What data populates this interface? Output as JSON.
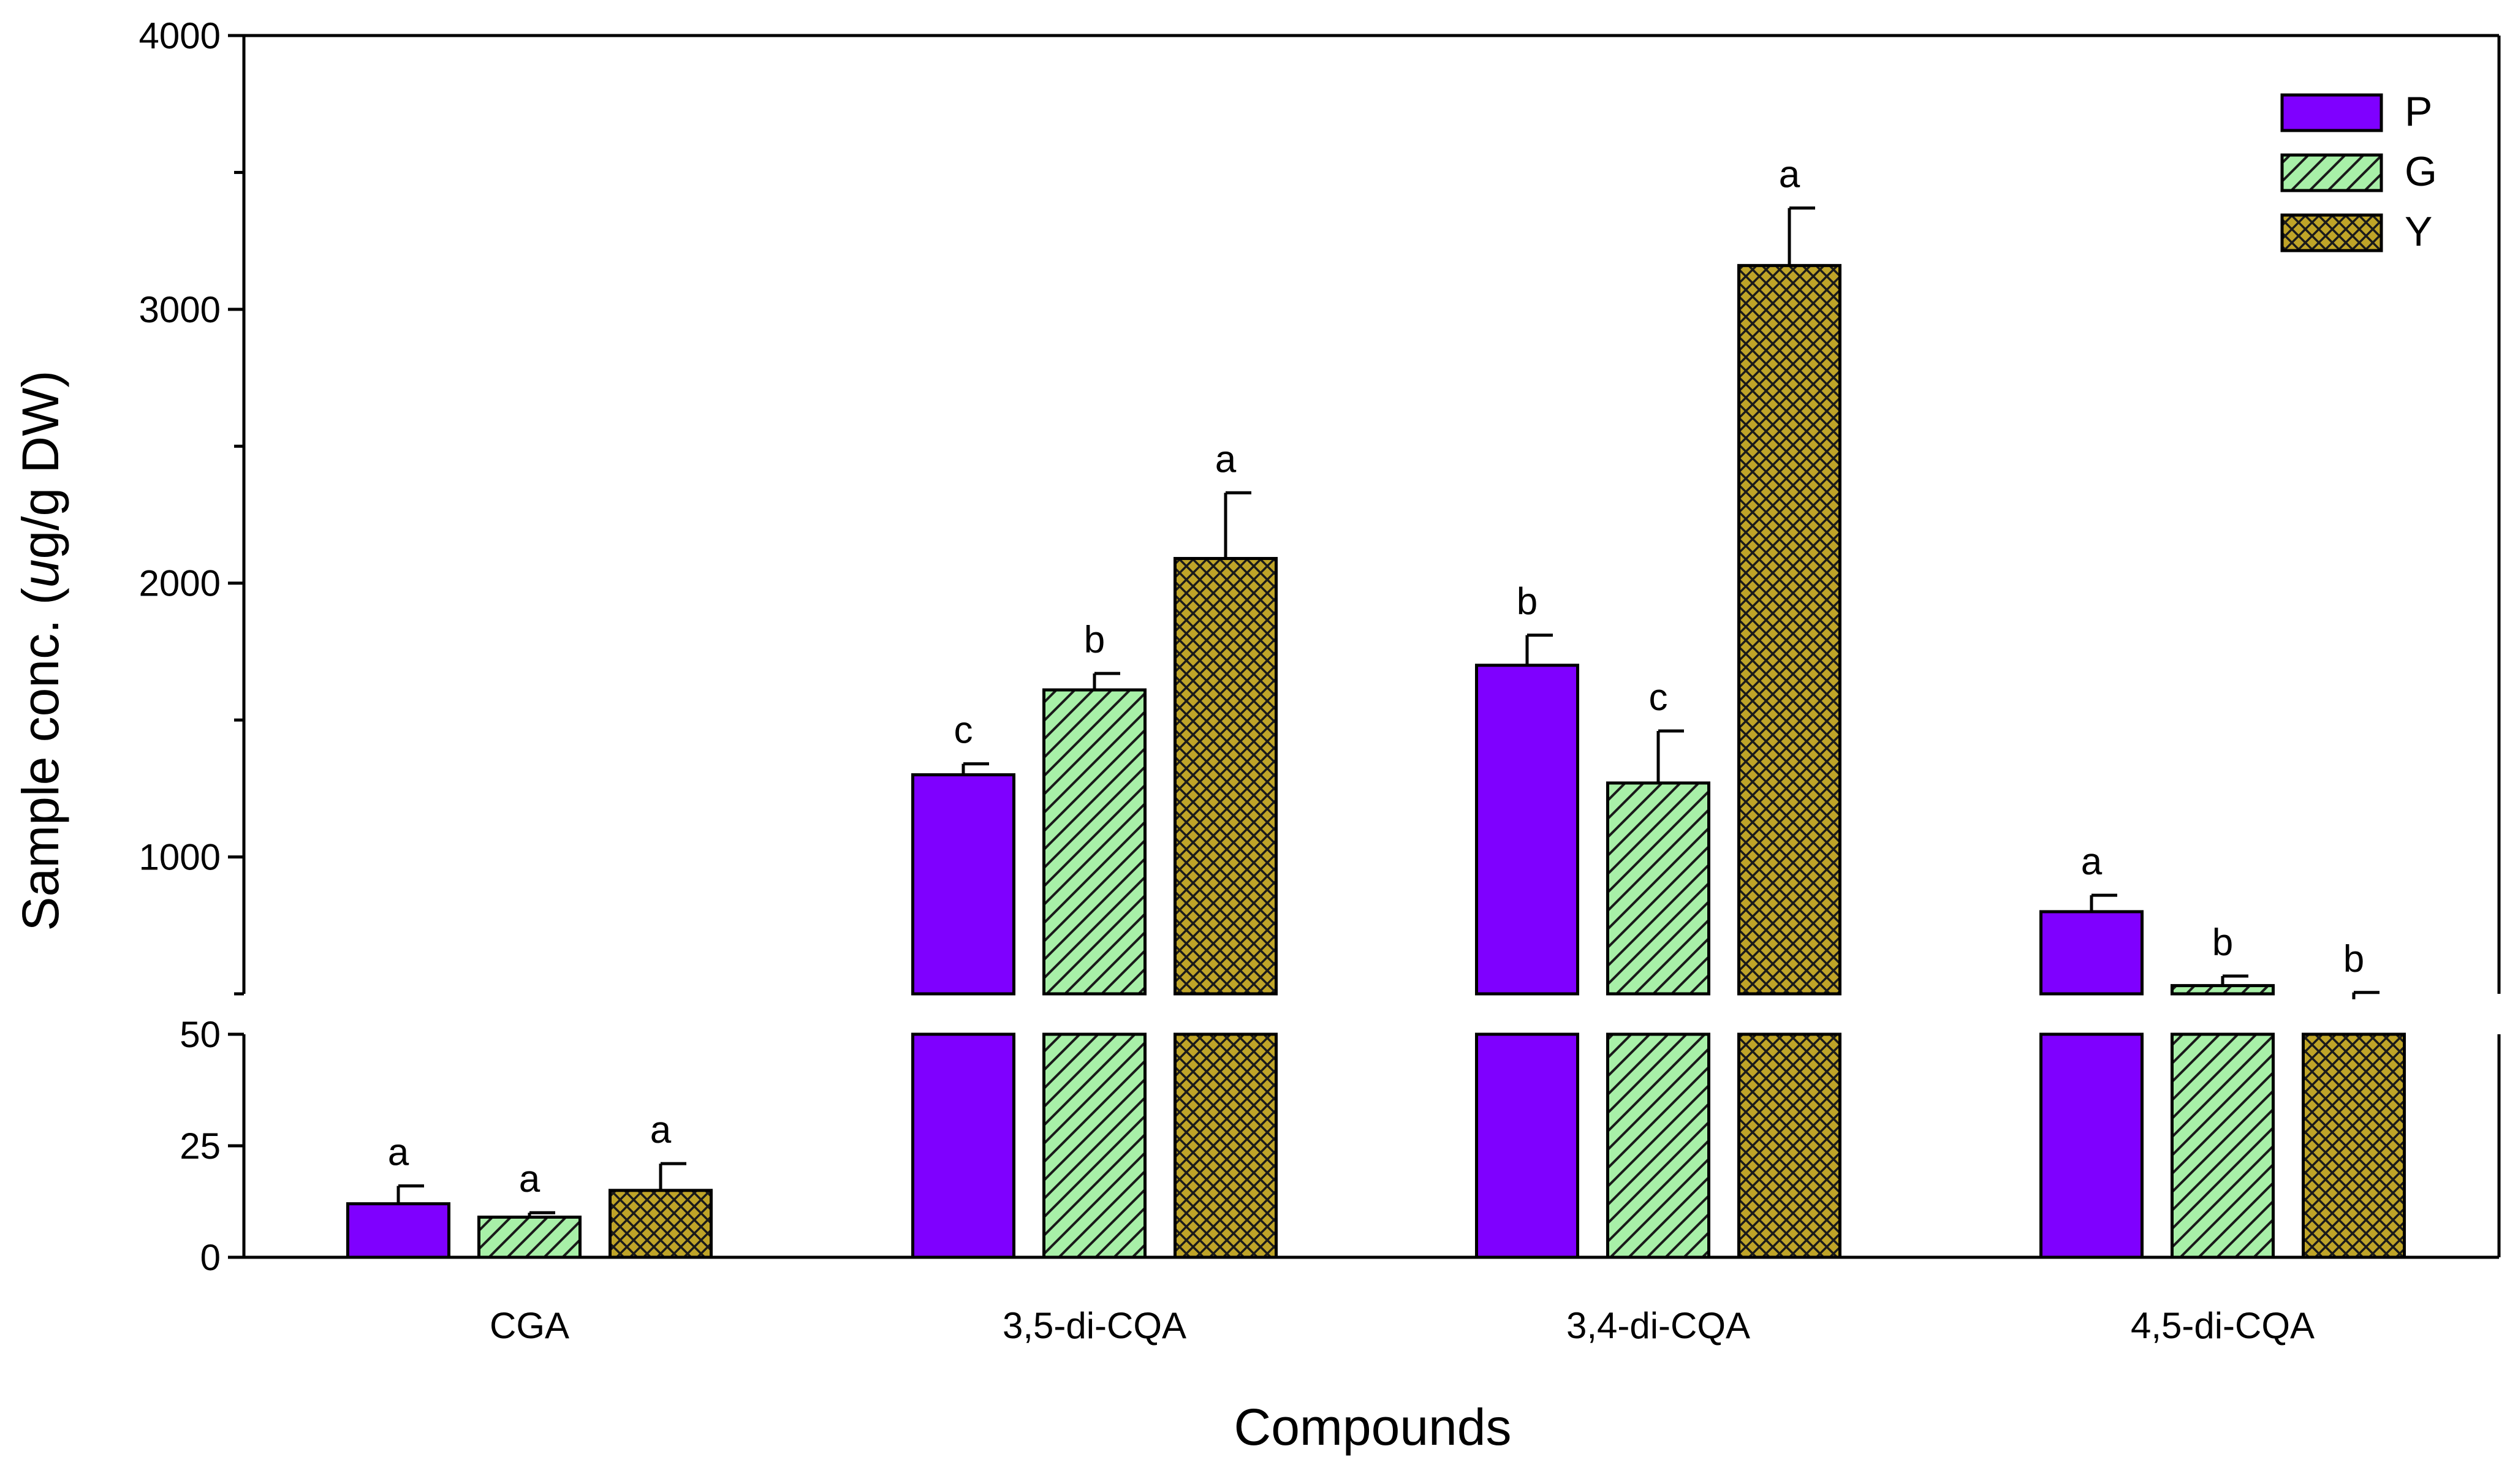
{
  "chart_data": {
    "type": "bar",
    "xlabel": "Compounds",
    "ylabel_prefix": "Sample conc. (",
    "ylabel_unit_italic": "u",
    "ylabel_suffix": "g/g DW)",
    "categories": [
      "CGA",
      "3,5-di-CQA",
      "3,4-di-CQA",
      "4,5-di-CQA"
    ],
    "series": [
      {
        "name": "P",
        "color": "#7F00FF",
        "pattern": "solid",
        "values": [
          12,
          1300,
          1700,
          800
        ],
        "errors": [
          4,
          40,
          110,
          60
        ],
        "letters": [
          "a",
          "c",
          "b",
          "a"
        ]
      },
      {
        "name": "G",
        "color": "#A8F0A8",
        "pattern": "diagonal-hatch",
        "values": [
          9,
          1610,
          1270,
          530
        ],
        "errors": [
          1,
          60,
          190,
          35
        ],
        "letters": [
          "a",
          "b",
          "c",
          "b"
        ]
      },
      {
        "name": "Y",
        "color": "#BFA428",
        "pattern": "cross-hatch",
        "values": [
          15,
          2090,
          3160,
          480
        ],
        "errors": [
          6,
          240,
          210,
          25
        ],
        "letters": [
          "a",
          "a",
          "a",
          "b"
        ]
      }
    ],
    "axis_break": {
      "lower_range": [
        0,
        50
      ],
      "upper_range": [
        500,
        4000
      ]
    },
    "lower_ticks": [
      "0",
      "25",
      "50"
    ],
    "upper_ticks": [
      "1000",
      "2000",
      "3000",
      "4000"
    ],
    "legend_position": "top-right",
    "grid": false
  }
}
